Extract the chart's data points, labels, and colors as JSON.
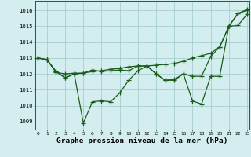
{
  "line1_y": [
    1013.0,
    1012.9,
    1012.1,
    1012.0,
    1012.05,
    1012.05,
    1012.15,
    1012.2,
    1012.3,
    1012.35,
    1012.45,
    1012.5,
    1012.5,
    1012.55,
    1012.6,
    1012.65,
    1012.8,
    1013.0,
    1013.15,
    1013.3,
    1013.7,
    1015.0,
    1015.8,
    1016.0
  ],
  "line2_y": [
    1013.0,
    1012.9,
    1012.15,
    1011.75,
    1012.0,
    1012.05,
    1012.25,
    1012.15,
    1012.2,
    1012.25,
    1012.2,
    1012.5,
    1012.5,
    1012.0,
    1011.6,
    1011.65,
    1012.0,
    1011.85,
    1011.85,
    1013.1,
    1013.7,
    1015.0,
    1015.05,
    1015.75
  ],
  "line3_y": [
    1013.0,
    1012.9,
    1012.15,
    1011.75,
    1012.0,
    1008.9,
    1010.25,
    1010.3,
    1010.25,
    1010.8,
    1011.6,
    1012.2,
    1012.5,
    1012.0,
    1011.6,
    1011.6,
    1012.0,
    1010.3,
    1010.1,
    1011.85,
    1011.85,
    1015.0,
    1015.8,
    1016.05
  ],
  "x": [
    0,
    1,
    2,
    3,
    4,
    5,
    6,
    7,
    8,
    9,
    10,
    11,
    12,
    13,
    14,
    15,
    16,
    17,
    18,
    19,
    20,
    21,
    22,
    23
  ],
  "bg_color": "#d4eef0",
  "line_color": "#1a5c1a",
  "marker": "+",
  "markersize": 4,
  "linewidth": 0.9,
  "xlabel": "Graphe pression niveau de la mer (hPa)",
  "xtick_labels": [
    "0",
    "1",
    "2",
    "3",
    "4",
    "5",
    "6",
    "7",
    "8",
    "9",
    "10",
    "11",
    "12",
    "13",
    "14",
    "15",
    "16",
    "17",
    "18",
    "19",
    "20",
    "21",
    "22",
    "23"
  ],
  "ytick_values": [
    1009,
    1010,
    1011,
    1012,
    1013,
    1014,
    1015,
    1016
  ],
  "ylim": [
    1008.5,
    1016.6
  ],
  "xlim": [
    -0.3,
    23.3
  ],
  "grid_color": "#9ec8c8",
  "grid_linewidth": 0.5,
  "xtick_fontsize": 4.5,
  "ytick_fontsize": 5.2,
  "xlabel_fontsize": 6.8
}
